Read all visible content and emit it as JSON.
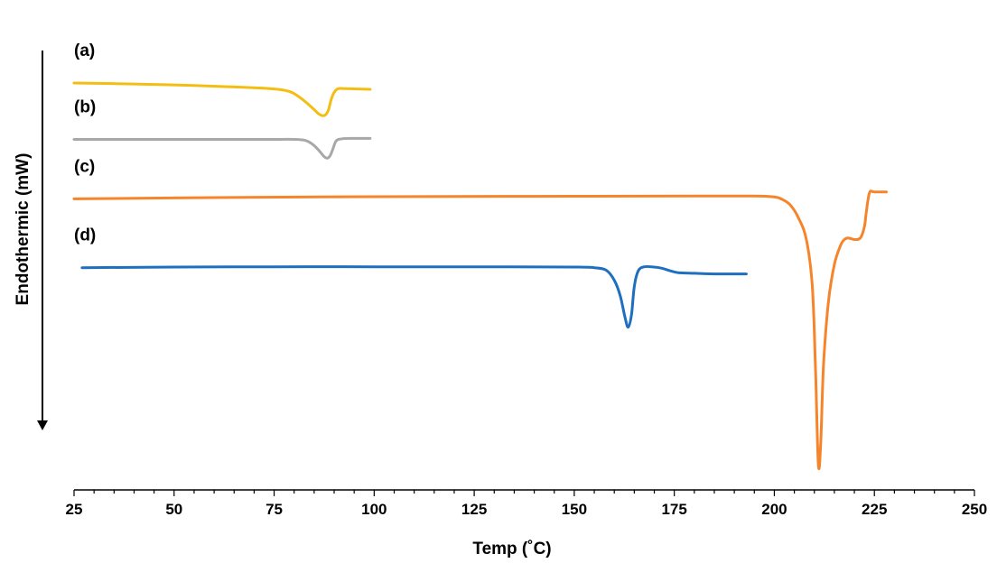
{
  "chart_data": {
    "type": "line",
    "title": "",
    "xlabel": "Temp (˚C)",
    "ylabel": "Endothermic  (mW)",
    "xlim": [
      25,
      250
    ],
    "x_ticks": [
      "25",
      "50",
      "75",
      "100",
      "125",
      "150",
      "175",
      "200",
      "225",
      "250"
    ],
    "ylim": [
      -1.0,
      0.45
    ],
    "y_ticks_shown": false,
    "grid": false,
    "legend": "none",
    "ylabel_arrow": "down",
    "series": [
      {
        "name": "(a)",
        "color": "#F4BD12",
        "x": [
          25,
          40,
          55,
          70,
          76,
          79,
          81,
          83,
          85,
          86,
          87,
          87.8,
          88.6,
          89.2,
          90,
          91,
          93,
          96,
          99
        ],
        "y": [
          0.3,
          0.297,
          0.292,
          0.285,
          0.28,
          0.272,
          0.258,
          0.238,
          0.215,
          0.203,
          0.196,
          0.198,
          0.215,
          0.245,
          0.27,
          0.282,
          0.282,
          0.281,
          0.28
        ]
      },
      {
        "name": "(b)",
        "color": "#A8A8A8",
        "x": [
          25,
          40,
          60,
          75,
          80,
          83,
          85,
          86.5,
          87.5,
          88.3,
          89,
          89.7,
          90.5,
          92,
          95,
          99
        ],
        "y": [
          0.12,
          0.12,
          0.12,
          0.12,
          0.12,
          0.116,
          0.1,
          0.08,
          0.065,
          0.06,
          0.068,
          0.09,
          0.115,
          0.122,
          0.123,
          0.123
        ]
      },
      {
        "name": "(c)",
        "color": "#F5842A",
        "x": [
          25,
          60,
          100,
          140,
          180,
          195,
          200,
          202,
          204,
          206,
          208,
          209.5,
          210.3,
          211,
          211.6,
          212.3,
          213.5,
          215,
          216.5,
          217.5,
          218.5,
          220,
          221.5,
          222.5,
          223,
          223.8,
          225,
          228
        ],
        "y": [
          -0.07,
          -0.066,
          -0.063,
          -0.062,
          -0.061,
          -0.061,
          -0.064,
          -0.072,
          -0.09,
          -0.13,
          -0.2,
          -0.35,
          -0.62,
          -0.92,
          -0.85,
          -0.6,
          -0.4,
          -0.28,
          -0.22,
          -0.2,
          -0.195,
          -0.2,
          -0.195,
          -0.16,
          -0.11,
          -0.05,
          -0.048,
          -0.048
        ]
      },
      {
        "name": "(d)",
        "color": "#1E6FC0",
        "x": [
          27,
          50,
          75,
          100,
          125,
          150,
          155,
          158,
          160,
          161.5,
          162.7,
          163.5,
          164.3,
          165,
          166,
          167.5,
          170,
          172,
          174,
          176,
          180,
          185,
          190,
          193
        ],
        "y": [
          -0.29,
          -0.288,
          -0.287,
          -0.287,
          -0.287,
          -0.288,
          -0.29,
          -0.298,
          -0.33,
          -0.38,
          -0.45,
          -0.48,
          -0.44,
          -0.35,
          -0.3,
          -0.287,
          -0.288,
          -0.292,
          -0.3,
          -0.306,
          -0.308,
          -0.31,
          -0.31,
          -0.31
        ]
      }
    ]
  }
}
